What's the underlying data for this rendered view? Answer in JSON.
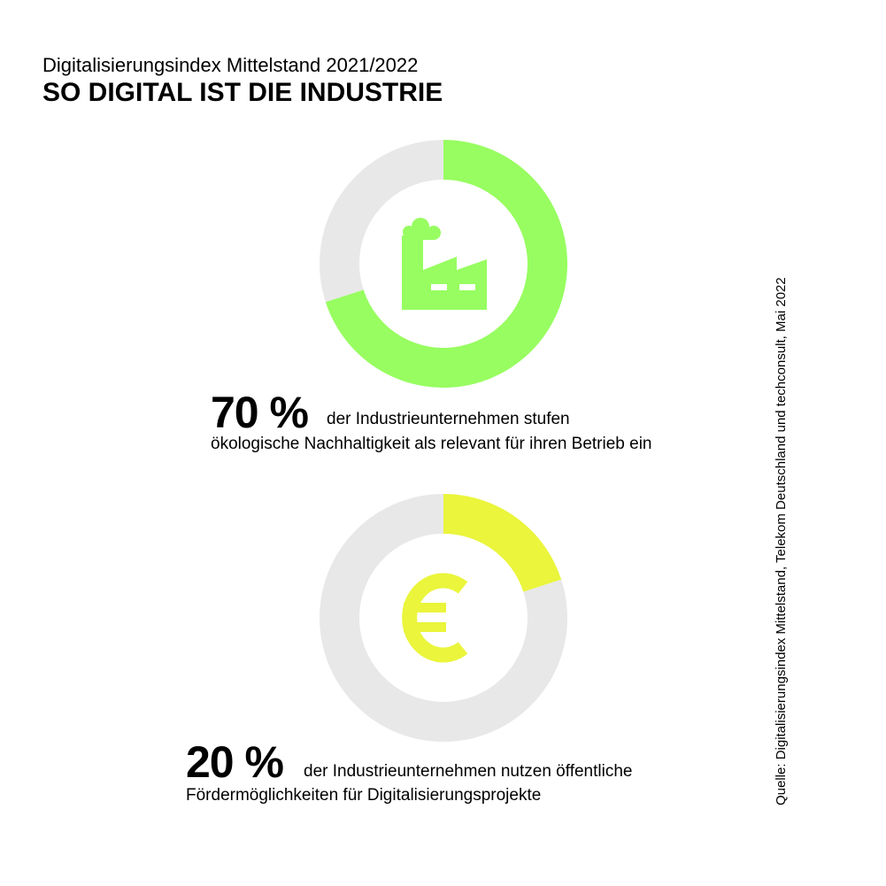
{
  "header": {
    "subtitle": "Digitalisierungsindex Mittelstand 2021/2022",
    "title": "SO DIGITAL IST DIE INDUSTRIE"
  },
  "chart_data": [
    {
      "type": "pie",
      "style": "donut",
      "icon": "factory-icon",
      "values": [
        70,
        30
      ],
      "colors": [
        "#97fd60",
        "#e8e8e8"
      ],
      "percent_label": "70 %",
      "text_line1": "der Industrieunternehmen stufen",
      "text_line2": "ökologische Nachhaltigkeit als relevant für ihren Betrieb ein"
    },
    {
      "type": "pie",
      "style": "donut",
      "icon": "euro-icon",
      "values": [
        20,
        80
      ],
      "colors": [
        "#eaf53b",
        "#e8e8e8"
      ],
      "percent_label": "20 %",
      "text_line1": "der Industrieunternehmen nutzen öffentliche",
      "text_line2": "Fördermöglichkeiten für Digitalisierungsprojekte"
    }
  ],
  "source": "Quelle: Digitalisierungsindex Mittelstand, Telekom Deutschland und techconsult, Mai 2022"
}
